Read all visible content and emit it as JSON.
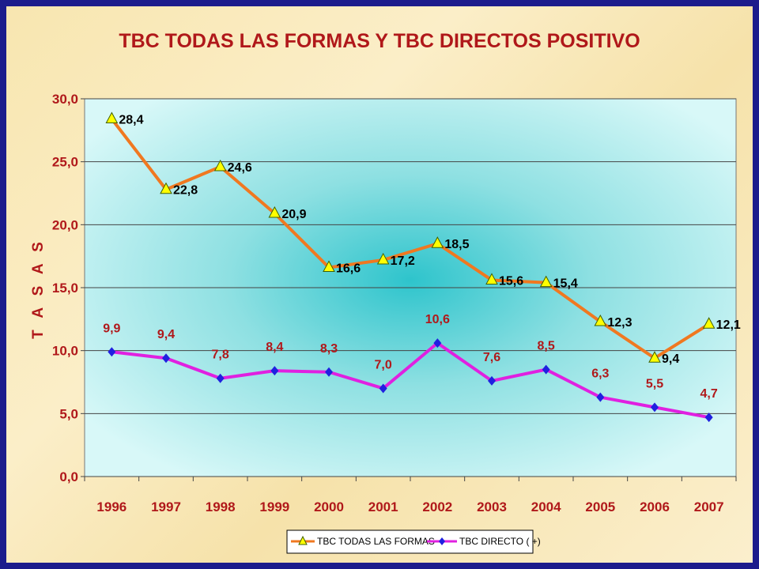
{
  "chart_data": {
    "type": "line",
    "title": "TBC TODAS LAS FORMAS  Y TBC DIRECTOS POSITIVO",
    "xlabel": "",
    "ylabel": "T A S A S",
    "categories": [
      "1996",
      "1997",
      "1998",
      "1999",
      "2000",
      "2001",
      "2002",
      "2003",
      "2004",
      "2005",
      "2006",
      "2007"
    ],
    "ylim": [
      0,
      30
    ],
    "yticks": [
      "0,0",
      "5,0",
      "10,0",
      "15,0",
      "20,0",
      "25,0",
      "30,0"
    ],
    "grid": true,
    "legend": "bottom",
    "series": [
      {
        "name": "TBC TODAS LAS FORMAS",
        "color": "#f07820",
        "marker": "triangle",
        "marker_color": "#ffff00",
        "values": [
          28.4,
          22.8,
          24.6,
          20.9,
          16.6,
          17.2,
          18.5,
          15.6,
          15.4,
          12.3,
          9.4,
          12.1
        ],
        "labels": [
          "28,4",
          "22,8",
          "24,6",
          "20,9",
          "16,6",
          "17,2",
          "18,5",
          "15,6",
          "15,4",
          "12,3",
          "9,4",
          "12,1"
        ]
      },
      {
        "name": "TBC DIRECTO  ( +)",
        "color": "#e020e0",
        "marker": "diamond",
        "marker_color": "#2020e0",
        "values": [
          9.9,
          9.4,
          7.8,
          8.4,
          8.3,
          7.0,
          10.6,
          7.6,
          8.5,
          6.3,
          5.5,
          4.7
        ],
        "labels": [
          "9,9",
          "9,4",
          "7,8",
          "8,4",
          "8,3",
          "7,0",
          "10,6",
          "7,6",
          "8,5",
          "6,3",
          "5,5",
          "4,7"
        ]
      }
    ]
  }
}
